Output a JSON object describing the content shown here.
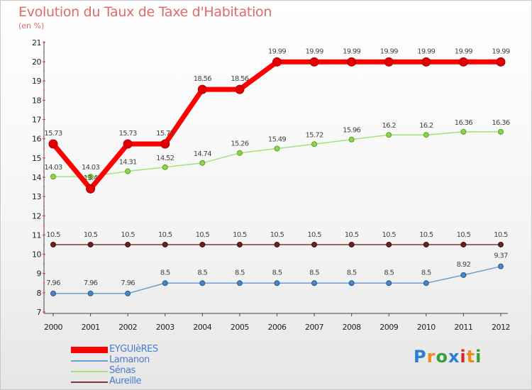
{
  "header": {
    "title": "Evolution du Taux de Taxe d'Habitation",
    "subtitle": "(en %)"
  },
  "logo": {
    "text": "Proxiti",
    "colors": [
      "#2a7fd4",
      "#ee8a1e",
      "#3a9e3a",
      "#2a7fd4",
      "#d42a2a",
      "#ee8a1e",
      "#3a9e3a"
    ]
  },
  "chart_data": {
    "type": "line",
    "x": [
      "2000",
      "2001",
      "2002",
      "2003",
      "2004",
      "2005",
      "2006",
      "2007",
      "2008",
      "2009",
      "2010",
      "2011",
      "2012"
    ],
    "ylim": [
      7,
      21
    ],
    "yticks": [
      "7",
      "8",
      "9",
      "10",
      "11",
      "12",
      "13",
      "14",
      "15",
      "16",
      "17",
      "18",
      "19",
      "20",
      "21"
    ],
    "grid": false,
    "legend": "bottom-left",
    "series": [
      {
        "name": "EYGUIèRES",
        "color": "#ff0000",
        "values": [
          15.73,
          13.4,
          15.73,
          15.73,
          18.56,
          18.56,
          19.99,
          19.99,
          19.99,
          19.99,
          19.99,
          19.99,
          19.99
        ],
        "labels": [
          "15.73",
          "13.4",
          "15.73",
          "15.73",
          "18.56",
          "18.56",
          "19.99",
          "19.99",
          "19.99",
          "19.99",
          "19.99",
          "19.99",
          "19.99"
        ]
      },
      {
        "name": "Lamanon",
        "color": "#6a9fd0",
        "values": [
          7.96,
          7.96,
          7.96,
          8.5,
          8.5,
          8.5,
          8.5,
          8.5,
          8.5,
          8.5,
          8.5,
          8.92,
          9.37
        ],
        "labels": [
          "7.96",
          "7.96",
          "7.96",
          "8.5",
          "8.5",
          "8.5",
          "8.5",
          "8.5",
          "8.5",
          "8.5",
          "8.5",
          "8.92",
          "9.37"
        ]
      },
      {
        "name": "Sénas",
        "color": "#a8e07a",
        "values": [
          14.03,
          14.03,
          14.31,
          14.52,
          14.74,
          15.26,
          15.49,
          15.72,
          15.96,
          16.2,
          16.2,
          16.36,
          16.36
        ],
        "labels": [
          "14.03",
          "14.03",
          "14.31",
          "14.52",
          "14.74",
          "15.26",
          "15.49",
          "15.72",
          "15.96",
          "16.2",
          "16.2",
          "16.36",
          "16.36"
        ]
      },
      {
        "name": "Aureille",
        "color": "#7a3a3a",
        "values": [
          10.5,
          10.5,
          10.5,
          10.5,
          10.5,
          10.5,
          10.5,
          10.5,
          10.5,
          10.5,
          10.5,
          10.5,
          10.5
        ],
        "labels": [
          "10.5",
          "10.5",
          "10.5",
          "10.5",
          "10.5",
          "10.5",
          "10.5",
          "10.5",
          "10.5",
          "10.5",
          "10.5",
          "10.5",
          "10.5"
        ]
      }
    ]
  }
}
